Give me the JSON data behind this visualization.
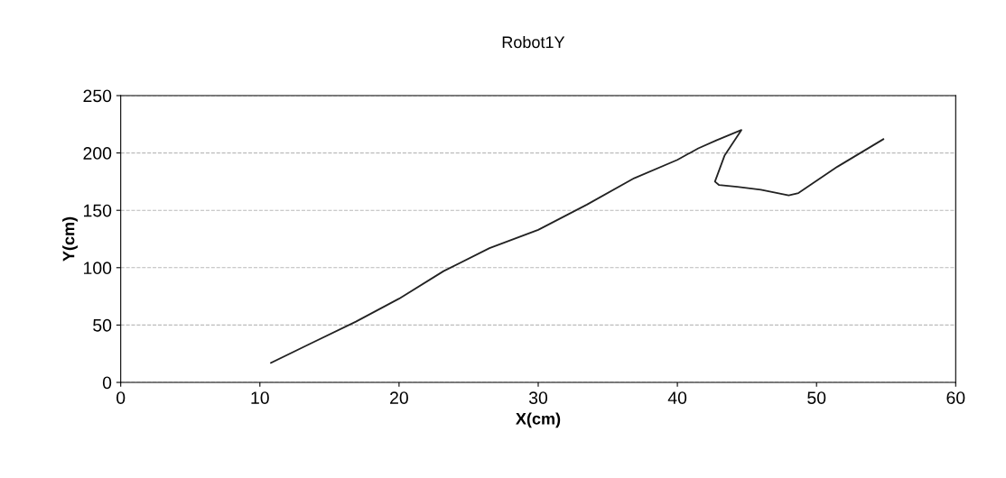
{
  "chart_data": {
    "type": "line",
    "title": "Robot1Y",
    "xlabel": "X(cm)",
    "ylabel": "Y(cm)",
    "xlim": [
      0,
      60
    ],
    "xticks": [
      0,
      10,
      20,
      30,
      40,
      50,
      60
    ],
    "ylim": [
      0,
      250
    ],
    "yticks": [
      0,
      50,
      100,
      150,
      200,
      250
    ],
    "grid": "y",
    "marker": "none",
    "line_style": "solid",
    "series": [
      {
        "color": "#222222",
        "x": [
          10.8,
          13.5,
          16.9,
          20,
          23.2,
          26.5,
          30,
          33.5,
          36.9,
          40,
          41.5,
          42.8,
          44.6,
          43.4,
          42.7,
          43,
          44.3,
          46,
          48,
          48.7,
          51.5,
          54.8
        ],
        "values": [
          17,
          33,
          53,
          73,
          97,
          117,
          133,
          155,
          178,
          194,
          204,
          211,
          220,
          198,
          175,
          172,
          170.5,
          168,
          163,
          165,
          188,
          212
        ]
      }
    ]
  }
}
